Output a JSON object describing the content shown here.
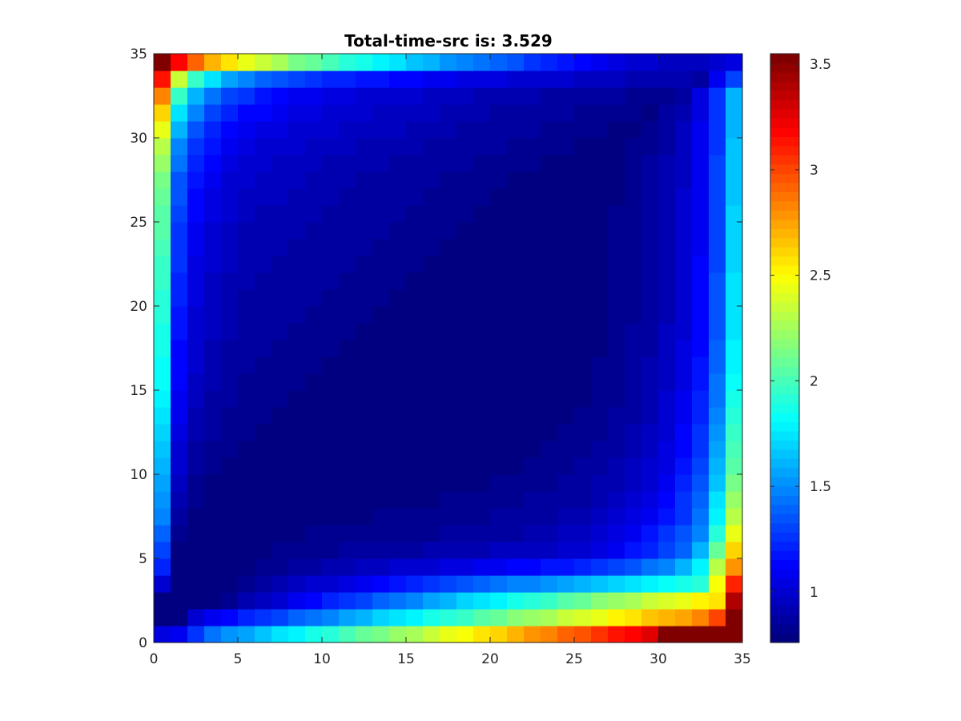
{
  "chart_data": {
    "type": "heatmap",
    "title": "Total-time-src is: 3.529",
    "xlabel": "",
    "ylabel": "",
    "xlim": [
      0,
      35
    ],
    "ylim": [
      0,
      35
    ],
    "grid_size": 35,
    "x_ticks": [
      0,
      5,
      10,
      15,
      20,
      25,
      30,
      35
    ],
    "y_ticks": [
      0,
      5,
      10,
      15,
      20,
      25,
      30,
      35
    ],
    "x_tick_labels": [
      "0",
      "5",
      "10",
      "15",
      "20",
      "25",
      "30",
      "35"
    ],
    "y_tick_labels": [
      "0",
      "5",
      "10",
      "15",
      "20",
      "25",
      "30",
      "35"
    ],
    "colormap": "jet",
    "colorbar": {
      "placement": "right",
      "range": [
        0.76,
        3.55
      ],
      "ticks": [
        1,
        1.5,
        2,
        2.5,
        3,
        3.5
      ],
      "tick_labels": [
        "1",
        "1.5",
        "2",
        "2.5",
        "3",
        "3.5"
      ]
    },
    "grid": false,
    "values": [
      [
        1.05,
        1.07,
        1.25,
        1.43,
        1.51,
        1.58,
        1.65,
        1.72,
        1.79,
        1.86,
        1.93,
        2.0,
        2.07,
        2.14,
        2.21,
        2.28,
        2.35,
        2.42,
        2.49,
        2.56,
        2.63,
        2.7,
        2.77,
        2.84,
        2.91,
        2.98,
        3.05,
        3.12,
        3.19,
        3.26,
        3.55,
        3.55,
        3.55,
        3.55,
        3.55
      ],
      [
        0.76,
        0.76,
        0.98,
        1.07,
        1.14,
        1.2,
        1.26,
        1.32,
        1.38,
        1.44,
        1.5,
        1.56,
        1.62,
        1.68,
        1.74,
        1.8,
        1.86,
        1.92,
        1.98,
        2.04,
        2.1,
        2.16,
        2.22,
        2.28,
        2.34,
        2.4,
        2.46,
        2.52,
        2.58,
        2.64,
        2.7,
        2.76,
        2.82,
        3.0,
        3.55
      ],
      [
        0.8,
        0.76,
        0.77,
        0.8,
        0.84,
        0.91,
        0.96,
        1.02,
        1.08,
        1.14,
        1.2,
        1.26,
        1.32,
        1.38,
        1.44,
        1.5,
        1.56,
        1.62,
        1.68,
        1.74,
        1.8,
        1.86,
        1.92,
        1.98,
        2.04,
        2.1,
        2.16,
        2.22,
        2.28,
        2.34,
        2.4,
        2.46,
        2.52,
        2.58,
        3.38
      ],
      [
        1.0,
        0.76,
        0.77,
        0.78,
        0.8,
        0.83,
        0.86,
        0.9,
        0.94,
        0.98,
        1.02,
        1.06,
        1.1,
        1.14,
        1.18,
        1.22,
        1.26,
        1.3,
        1.34,
        1.38,
        1.42,
        1.46,
        1.5,
        1.54,
        1.58,
        1.62,
        1.66,
        1.7,
        1.74,
        1.78,
        1.82,
        1.86,
        1.9,
        2.5,
        3.1
      ],
      [
        1.2,
        0.76,
        0.77,
        0.77,
        0.78,
        0.8,
        0.82,
        0.84,
        0.86,
        0.88,
        0.9,
        0.92,
        0.94,
        0.96,
        0.98,
        1.0,
        1.02,
        1.04,
        1.06,
        1.08,
        1.1,
        1.12,
        1.14,
        1.16,
        1.18,
        1.2,
        1.24,
        1.3,
        1.36,
        1.42,
        1.5,
        1.6,
        1.8,
        2.3,
        2.8
      ],
      [
        1.3,
        0.8,
        0.77,
        0.77,
        0.78,
        0.79,
        0.8,
        0.81,
        0.82,
        0.83,
        0.84,
        0.85,
        0.86,
        0.87,
        0.88,
        0.89,
        0.9,
        0.91,
        0.92,
        0.93,
        0.94,
        0.95,
        0.96,
        0.97,
        0.98,
        1.0,
        1.04,
        1.1,
        1.16,
        1.22,
        1.3,
        1.4,
        1.6,
        2.1,
        2.6
      ],
      [
        1.4,
        0.84,
        0.78,
        0.77,
        0.77,
        0.78,
        0.79,
        0.8,
        0.8,
        0.81,
        0.81,
        0.82,
        0.82,
        0.83,
        0.83,
        0.84,
        0.84,
        0.85,
        0.86,
        0.87,
        0.88,
        0.89,
        0.9,
        0.92,
        0.94,
        0.96,
        1.0,
        1.04,
        1.1,
        1.16,
        1.24,
        1.34,
        1.5,
        1.9,
        2.45
      ],
      [
        1.46,
        0.88,
        0.8,
        0.78,
        0.77,
        0.77,
        0.78,
        0.78,
        0.79,
        0.79,
        0.8,
        0.8,
        0.8,
        0.81,
        0.81,
        0.82,
        0.82,
        0.83,
        0.83,
        0.84,
        0.85,
        0.86,
        0.87,
        0.88,
        0.9,
        0.92,
        0.95,
        0.99,
        1.04,
        1.1,
        1.18,
        1.28,
        1.44,
        1.8,
        2.3
      ],
      [
        1.52,
        0.92,
        0.82,
        0.79,
        0.78,
        0.77,
        0.77,
        0.77,
        0.78,
        0.78,
        0.78,
        0.79,
        0.79,
        0.79,
        0.8,
        0.8,
        0.8,
        0.81,
        0.81,
        0.82,
        0.83,
        0.84,
        0.85,
        0.86,
        0.87,
        0.89,
        0.92,
        0.96,
        1.0,
        1.06,
        1.14,
        1.24,
        1.4,
        1.72,
        2.2
      ],
      [
        1.58,
        0.95,
        0.84,
        0.8,
        0.79,
        0.78,
        0.77,
        0.77,
        0.77,
        0.77,
        0.77,
        0.78,
        0.78,
        0.78,
        0.78,
        0.79,
        0.79,
        0.79,
        0.8,
        0.8,
        0.81,
        0.82,
        0.83,
        0.84,
        0.85,
        0.87,
        0.9,
        0.93,
        0.97,
        1.02,
        1.1,
        1.2,
        1.36,
        1.66,
        2.12
      ],
      [
        1.63,
        0.98,
        0.86,
        0.82,
        0.8,
        0.79,
        0.78,
        0.77,
        0.77,
        0.77,
        0.77,
        0.77,
        0.77,
        0.77,
        0.77,
        0.78,
        0.78,
        0.78,
        0.78,
        0.79,
        0.79,
        0.8,
        0.81,
        0.82,
        0.83,
        0.85,
        0.87,
        0.9,
        0.94,
        0.99,
        1.06,
        1.16,
        1.32,
        1.6,
        2.05
      ],
      [
        1.67,
        1.01,
        0.88,
        0.84,
        0.81,
        0.8,
        0.79,
        0.78,
        0.77,
        0.77,
        0.77,
        0.77,
        0.77,
        0.77,
        0.77,
        0.77,
        0.77,
        0.77,
        0.78,
        0.78,
        0.78,
        0.79,
        0.8,
        0.81,
        0.82,
        0.83,
        0.85,
        0.88,
        0.92,
        0.97,
        1.04,
        1.13,
        1.28,
        1.55,
        1.99
      ],
      [
        1.71,
        1.04,
        0.9,
        0.85,
        0.82,
        0.81,
        0.8,
        0.79,
        0.78,
        0.77,
        0.77,
        0.77,
        0.77,
        0.77,
        0.77,
        0.77,
        0.77,
        0.77,
        0.77,
        0.77,
        0.78,
        0.78,
        0.79,
        0.8,
        0.81,
        0.82,
        0.84,
        0.87,
        0.9,
        0.95,
        1.02,
        1.11,
        1.25,
        1.51,
        1.94
      ],
      [
        1.75,
        1.07,
        0.92,
        0.87,
        0.84,
        0.82,
        0.81,
        0.8,
        0.79,
        0.78,
        0.77,
        0.77,
        0.77,
        0.77,
        0.77,
        0.77,
        0.77,
        0.77,
        0.77,
        0.77,
        0.77,
        0.78,
        0.78,
        0.79,
        0.8,
        0.81,
        0.83,
        0.85,
        0.89,
        0.93,
        1.0,
        1.09,
        1.22,
        1.48,
        1.9
      ],
      [
        1.78,
        1.09,
        0.94,
        0.88,
        0.85,
        0.83,
        0.82,
        0.81,
        0.8,
        0.79,
        0.78,
        0.77,
        0.77,
        0.77,
        0.77,
        0.77,
        0.77,
        0.77,
        0.77,
        0.77,
        0.77,
        0.77,
        0.78,
        0.78,
        0.79,
        0.8,
        0.82,
        0.84,
        0.88,
        0.92,
        0.98,
        1.07,
        1.2,
        1.45,
        1.86
      ],
      [
        1.81,
        1.11,
        0.96,
        0.9,
        0.86,
        0.84,
        0.83,
        0.82,
        0.81,
        0.8,
        0.79,
        0.78,
        0.77,
        0.77,
        0.77,
        0.77,
        0.77,
        0.77,
        0.77,
        0.77,
        0.77,
        0.77,
        0.77,
        0.78,
        0.78,
        0.8,
        0.81,
        0.83,
        0.87,
        0.91,
        0.97,
        1.05,
        1.18,
        1.42,
        1.83
      ],
      [
        1.84,
        1.13,
        0.98,
        0.91,
        0.88,
        0.85,
        0.84,
        0.83,
        0.82,
        0.81,
        0.8,
        0.79,
        0.78,
        0.77,
        0.77,
        0.77,
        0.77,
        0.77,
        0.77,
        0.77,
        0.77,
        0.77,
        0.77,
        0.77,
        0.78,
        0.79,
        0.81,
        0.83,
        0.86,
        0.9,
        0.96,
        1.04,
        1.16,
        1.4,
        1.8
      ],
      [
        1.86,
        1.15,
        0.99,
        0.92,
        0.89,
        0.86,
        0.85,
        0.84,
        0.83,
        0.82,
        0.81,
        0.8,
        0.79,
        0.78,
        0.77,
        0.77,
        0.77,
        0.77,
        0.77,
        0.77,
        0.77,
        0.77,
        0.77,
        0.77,
        0.78,
        0.79,
        0.8,
        0.82,
        0.85,
        0.89,
        0.95,
        1.03,
        1.15,
        1.38,
        1.78
      ],
      [
        1.89,
        1.17,
        1.01,
        0.94,
        0.9,
        0.87,
        0.86,
        0.85,
        0.84,
        0.83,
        0.82,
        0.81,
        0.8,
        0.79,
        0.78,
        0.77,
        0.77,
        0.77,
        0.77,
        0.77,
        0.77,
        0.77,
        0.77,
        0.77,
        0.77,
        0.78,
        0.8,
        0.82,
        0.85,
        0.89,
        0.94,
        1.02,
        1.14,
        1.36,
        1.76
      ],
      [
        1.91,
        1.19,
        1.02,
        0.95,
        0.91,
        0.88,
        0.87,
        0.86,
        0.85,
        0.84,
        0.83,
        0.82,
        0.81,
        0.8,
        0.79,
        0.78,
        0.77,
        0.77,
        0.77,
        0.77,
        0.77,
        0.77,
        0.77,
        0.77,
        0.77,
        0.78,
        0.79,
        0.81,
        0.84,
        0.88,
        0.93,
        1.01,
        1.13,
        1.35,
        1.74
      ],
      [
        1.93,
        1.2,
        1.04,
        0.96,
        0.92,
        0.89,
        0.88,
        0.87,
        0.86,
        0.85,
        0.84,
        0.83,
        0.82,
        0.81,
        0.8,
        0.79,
        0.78,
        0.77,
        0.77,
        0.77,
        0.77,
        0.77,
        0.77,
        0.77,
        0.77,
        0.78,
        0.79,
        0.81,
        0.84,
        0.88,
        0.93,
        1.0,
        1.12,
        1.34,
        1.73
      ],
      [
        1.96,
        1.22,
        1.05,
        0.97,
        0.93,
        0.9,
        0.89,
        0.88,
        0.87,
        0.86,
        0.85,
        0.84,
        0.83,
        0.82,
        0.81,
        0.8,
        0.79,
        0.78,
        0.77,
        0.77,
        0.77,
        0.77,
        0.77,
        0.77,
        0.77,
        0.78,
        0.79,
        0.81,
        0.84,
        0.87,
        0.92,
        1.0,
        1.11,
        1.33,
        1.72
      ],
      [
        1.98,
        1.24,
        1.06,
        0.98,
        0.94,
        0.91,
        0.9,
        0.89,
        0.88,
        0.87,
        0.86,
        0.85,
        0.84,
        0.83,
        0.82,
        0.81,
        0.8,
        0.79,
        0.78,
        0.77,
        0.77,
        0.77,
        0.77,
        0.77,
        0.77,
        0.78,
        0.79,
        0.81,
        0.83,
        0.87,
        0.92,
        0.99,
        1.11,
        1.32,
        1.71
      ],
      [
        2.0,
        1.26,
        1.08,
        1.0,
        0.95,
        0.92,
        0.91,
        0.9,
        0.89,
        0.88,
        0.87,
        0.86,
        0.85,
        0.84,
        0.83,
        0.82,
        0.81,
        0.8,
        0.79,
        0.78,
        0.77,
        0.77,
        0.77,
        0.77,
        0.77,
        0.78,
        0.79,
        0.81,
        0.83,
        0.87,
        0.92,
        0.99,
        1.1,
        1.31,
        1.7
      ],
      [
        2.03,
        1.28,
        1.1,
        1.01,
        0.96,
        0.93,
        0.92,
        0.91,
        0.9,
        0.89,
        0.88,
        0.87,
        0.86,
        0.85,
        0.84,
        0.83,
        0.82,
        0.81,
        0.8,
        0.79,
        0.78,
        0.77,
        0.77,
        0.77,
        0.77,
        0.78,
        0.79,
        0.81,
        0.83,
        0.87,
        0.91,
        0.98,
        1.1,
        1.31,
        1.69
      ],
      [
        2.06,
        1.3,
        1.12,
        1.03,
        0.98,
        0.95,
        0.93,
        0.92,
        0.91,
        0.9,
        0.89,
        0.88,
        0.87,
        0.86,
        0.85,
        0.84,
        0.83,
        0.82,
        0.81,
        0.8,
        0.79,
        0.78,
        0.77,
        0.77,
        0.77,
        0.78,
        0.79,
        0.81,
        0.83,
        0.86,
        0.91,
        0.98,
        1.09,
        1.3,
        1.68
      ],
      [
        2.1,
        1.33,
        1.14,
        1.05,
        1.0,
        0.97,
        0.95,
        0.94,
        0.92,
        0.91,
        0.9,
        0.89,
        0.88,
        0.87,
        0.86,
        0.85,
        0.84,
        0.83,
        0.82,
        0.81,
        0.8,
        0.79,
        0.78,
        0.77,
        0.77,
        0.78,
        0.79,
        0.8,
        0.83,
        0.86,
        0.91,
        0.98,
        1.09,
        1.3,
        1.67
      ],
      [
        2.15,
        1.37,
        1.17,
        1.08,
        1.02,
        0.99,
        0.97,
        0.95,
        0.94,
        0.93,
        0.92,
        0.9,
        0.89,
        0.88,
        0.87,
        0.86,
        0.85,
        0.84,
        0.83,
        0.82,
        0.81,
        0.8,
        0.79,
        0.78,
        0.77,
        0.77,
        0.78,
        0.8,
        0.82,
        0.86,
        0.9,
        0.97,
        1.08,
        1.29,
        1.66
      ],
      [
        2.22,
        1.42,
        1.21,
        1.11,
        1.05,
        1.02,
        0.99,
        0.97,
        0.96,
        0.95,
        0.93,
        0.92,
        0.91,
        0.9,
        0.89,
        0.88,
        0.87,
        0.86,
        0.85,
        0.84,
        0.83,
        0.82,
        0.81,
        0.8,
        0.79,
        0.78,
        0.78,
        0.79,
        0.82,
        0.85,
        0.9,
        0.97,
        1.08,
        1.29,
        1.65
      ],
      [
        2.32,
        1.5,
        1.27,
        1.16,
        1.09,
        1.05,
        1.02,
        1.0,
        0.98,
        0.97,
        0.96,
        0.94,
        0.93,
        0.92,
        0.91,
        0.9,
        0.89,
        0.88,
        0.87,
        0.86,
        0.85,
        0.84,
        0.83,
        0.82,
        0.81,
        0.8,
        0.79,
        0.79,
        0.81,
        0.84,
        0.89,
        0.96,
        1.07,
        1.28,
        1.64
      ],
      [
        2.45,
        1.6,
        1.35,
        1.22,
        1.14,
        1.09,
        1.06,
        1.03,
        1.01,
        1.0,
        0.98,
        0.97,
        0.96,
        0.95,
        0.94,
        0.92,
        0.91,
        0.9,
        0.89,
        0.88,
        0.87,
        0.86,
        0.85,
        0.84,
        0.83,
        0.82,
        0.81,
        0.8,
        0.8,
        0.83,
        0.88,
        0.95,
        1.07,
        1.28,
        1.63
      ],
      [
        2.62,
        1.74,
        1.46,
        1.31,
        1.21,
        1.15,
        1.11,
        1.08,
        1.05,
        1.03,
        1.01,
        1.0,
        0.99,
        0.97,
        0.96,
        0.95,
        0.94,
        0.93,
        0.92,
        0.9,
        0.89,
        0.88,
        0.87,
        0.86,
        0.85,
        0.84,
        0.83,
        0.82,
        0.81,
        0.8,
        0.85,
        0.93,
        1.06,
        1.27,
        1.62
      ],
      [
        2.85,
        1.96,
        1.62,
        1.44,
        1.32,
        1.24,
        1.18,
        1.14,
        1.1,
        1.08,
        1.06,
        1.04,
        1.02,
        1.0,
        0.99,
        0.98,
        0.96,
        0.95,
        0.94,
        0.93,
        0.92,
        0.91,
        0.9,
        0.89,
        0.88,
        0.87,
        0.86,
        0.85,
        0.84,
        0.83,
        0.82,
        0.88,
        1.03,
        1.26,
        1.61
      ],
      [
        3.15,
        2.35,
        1.95,
        1.72,
        1.57,
        1.47,
        1.4,
        1.34,
        1.3,
        1.26,
        1.23,
        1.2,
        1.18,
        1.16,
        1.14,
        1.12,
        1.1,
        1.08,
        1.06,
        1.05,
        1.03,
        1.02,
        1.0,
        0.99,
        0.98,
        0.96,
        0.95,
        0.94,
        0.93,
        0.92,
        0.91,
        0.9,
        0.89,
        1.1,
        1.3
      ],
      [
        3.55,
        3.2,
        2.9,
        2.7,
        2.55,
        2.45,
        2.35,
        2.25,
        2.15,
        2.08,
        2.0,
        1.93,
        1.86,
        1.79,
        1.72,
        1.66,
        1.6,
        1.54,
        1.48,
        1.43,
        1.38,
        1.33,
        1.28,
        1.23,
        1.18,
        1.14,
        1.1,
        1.06,
        1.02,
        0.99,
        0.96,
        0.94,
        0.95,
        1.0,
        1.05
      ]
    ]
  }
}
